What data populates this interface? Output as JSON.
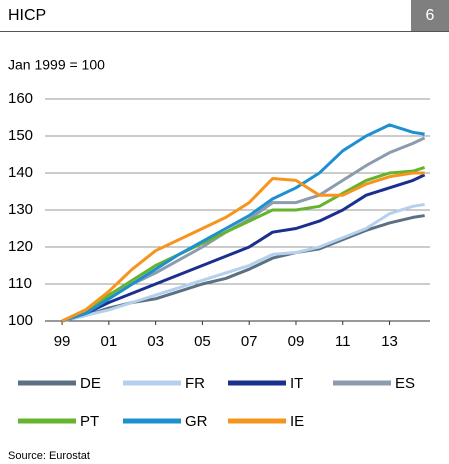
{
  "chart_data": {
    "type": "line",
    "title": "HICP",
    "badge": "6",
    "subtitle": "Jan 1999 = 100",
    "source": "Source: Eurostat",
    "x": [
      1999,
      2000,
      2001,
      2002,
      2003,
      2004,
      2005,
      2006,
      2007,
      2008,
      2009,
      2010,
      2011,
      2012,
      2013,
      2014,
      2014.5
    ],
    "xlim": [
      1998.27,
      2014.73
    ],
    "xticks": [
      {
        "value": 1999,
        "label": "99"
      },
      {
        "value": 2001,
        "label": "01"
      },
      {
        "value": 2003,
        "label": "03"
      },
      {
        "value": 2005,
        "label": "05"
      },
      {
        "value": 2007,
        "label": "07"
      },
      {
        "value": 2009,
        "label": "09"
      },
      {
        "value": 2011,
        "label": "11"
      },
      {
        "value": 2013,
        "label": "13"
      }
    ],
    "ylim": [
      100,
      160
    ],
    "yticks": [
      100,
      110,
      120,
      130,
      140,
      150,
      160
    ],
    "grid": true,
    "series": [
      {
        "name": "DE",
        "color": "#5b7083",
        "values": [
          100,
          101.5,
          103.5,
          105,
          106,
          108,
          110,
          111.5,
          114,
          117,
          118.5,
          119.5,
          122,
          124.5,
          126.5,
          128,
          128.5
        ]
      },
      {
        "name": "FR",
        "color": "#b5d0ec",
        "values": [
          100,
          101.5,
          103,
          105,
          107,
          109,
          111,
          113,
          115,
          118,
          118.5,
          120,
          122.5,
          125,
          129,
          131,
          131.5
        ]
      },
      {
        "name": "IT",
        "color": "#1b2f8f",
        "values": [
          100,
          102,
          105,
          107.5,
          110,
          112.5,
          115,
          117.5,
          120,
          124,
          125,
          127,
          130,
          134,
          136,
          138,
          139.5
        ]
      },
      {
        "name": "ES",
        "color": "#8c9bad",
        "values": [
          100,
          102.5,
          106,
          110,
          113,
          116.5,
          120,
          124,
          127.5,
          132,
          132,
          134,
          138,
          142,
          145.5,
          148,
          149.5
        ]
      },
      {
        "name": "PT",
        "color": "#66b32e",
        "values": [
          100,
          102,
          107,
          111,
          115,
          118,
          121,
          124,
          127,
          130,
          130,
          131,
          134.5,
          138,
          140,
          140.5,
          141.5
        ]
      },
      {
        "name": "GR",
        "color": "#1e90d0",
        "values": [
          100,
          102,
          106,
          110,
          114,
          118,
          121.5,
          125,
          128.5,
          133,
          136,
          140,
          146,
          150,
          153,
          151,
          150.5
        ]
      },
      {
        "name": "IE",
        "color": "#f7941d",
        "values": [
          100,
          103,
          108,
          114,
          119,
          122,
          125,
          128,
          132,
          138.5,
          138,
          134,
          134,
          137,
          139,
          140,
          140
        ]
      }
    ]
  }
}
